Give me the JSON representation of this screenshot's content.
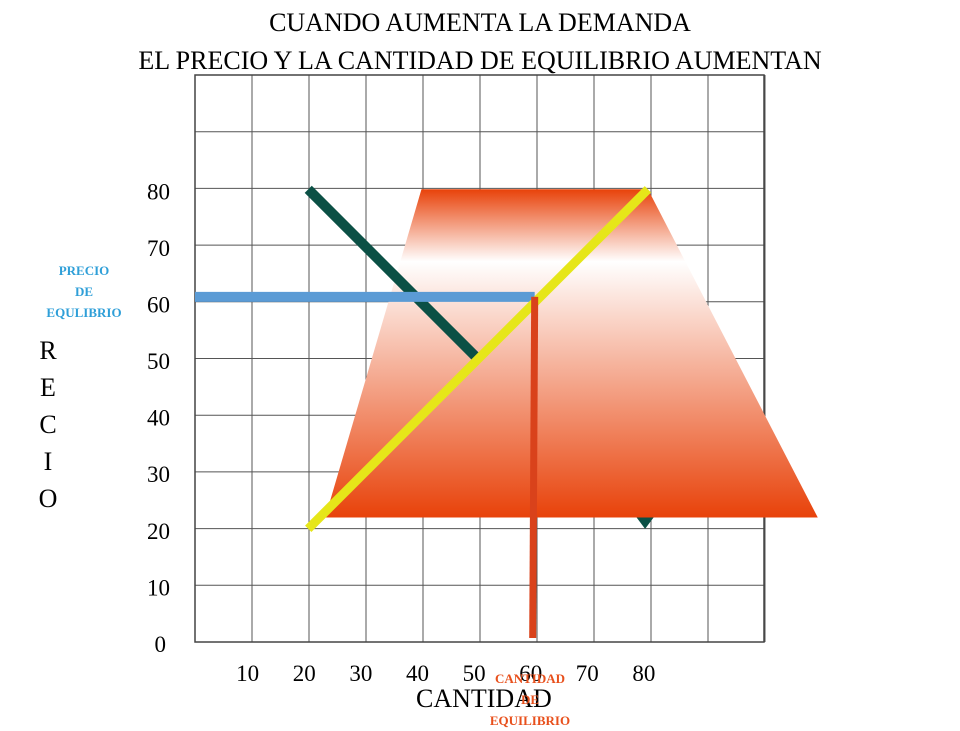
{
  "title": [
    "CUANDO AUMENTA LA DEMANDA",
    "EL PRECIO Y LA CANTIDAD DE EQUILIBRIO AUMENTAN"
  ],
  "colors": {
    "demand_original": "#0b5045",
    "demand_shifted_fill_top": "#ffffff",
    "demand_shifted_fill_bottom": "#e8420a",
    "supply": "#e6e619",
    "equilibrium_price_line": "#5b9bd5",
    "equilibrium_quantity_line": "#d9421b",
    "grid": "#555555",
    "price_label": "#2f9fd8",
    "quantity_label": "#e8501c"
  },
  "chart_data": {
    "type": "line",
    "title": "CUANDO AUMENTA LA DEMANDA EL PRECIO Y LA CANTIDAD DE EQUILIBRIO AUMENTAN",
    "xlabel": "CANTIDAD",
    "ylabel": "PRECIO",
    "x_ticks": [
      "10",
      "20",
      "30",
      "40",
      "50",
      "60",
      "70",
      "80"
    ],
    "y_ticks": [
      "0",
      "10",
      "20",
      "30",
      "40",
      "50",
      "60",
      "70",
      "80"
    ],
    "xlim": [
      0,
      100
    ],
    "ylim": [
      0,
      100
    ],
    "grid": true,
    "series": [
      {
        "role": "demand-original",
        "x": [
          20,
          50
        ],
        "y": [
          80,
          50
        ]
      },
      {
        "role": "supply",
        "x": [
          20,
          80
        ],
        "y": [
          20,
          80
        ]
      },
      {
        "role": "demand-shifted-shape",
        "x": [
          40,
          80,
          110,
          23
        ],
        "y": [
          80,
          80,
          22,
          22
        ]
      }
    ],
    "equilibrium": {
      "price": 61,
      "quantity": 60
    },
    "annotations": [
      {
        "text_lines": [
          "PRECIO",
          "DE",
          "EQULIBRIO"
        ]
      },
      {
        "text_lines": [
          "CANTIDAD",
          "DE",
          "EQUILIBRIO"
        ]
      }
    ]
  }
}
